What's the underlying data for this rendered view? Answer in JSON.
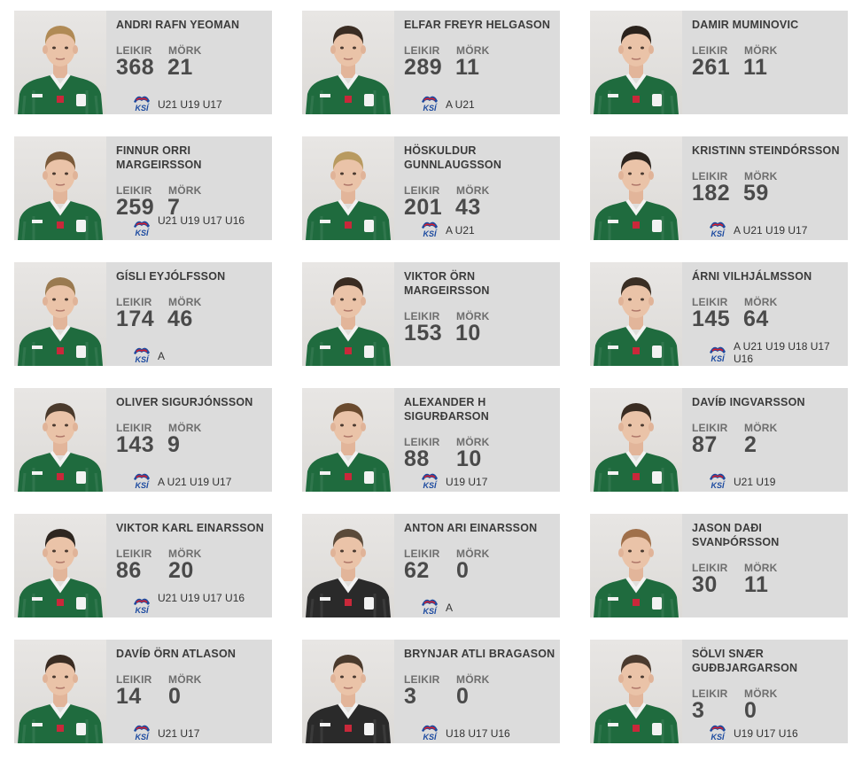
{
  "labels": {
    "games": "Leikir",
    "goals": "Mörk"
  },
  "colors": {
    "card_bg": "#dcdcdc",
    "jersey": "#1f6b3e",
    "keeper_jersey": "#2a2a2a",
    "ksi_blue": "#1c4aa0",
    "ksi_red": "#d22030"
  },
  "players": [
    {
      "name": "Andri Rafn Yeoman",
      "games": "368",
      "goals": "21",
      "teams": "U21 U19 U17",
      "hair": "#b08a55",
      "jersey": "field"
    },
    {
      "name": "Elfar Freyr Helgason",
      "games": "289",
      "goals": "11",
      "teams": "A U21",
      "hair": "#3a2c22",
      "jersey": "field"
    },
    {
      "name": "Damir Muminovic",
      "games": "261",
      "goals": "11",
      "teams": "",
      "hair": "#2a221c",
      "jersey": "field"
    },
    {
      "name": "Finnur Orri Margeirsson",
      "games": "259",
      "goals": "7",
      "teams": "U21 U19 U17 U16",
      "hair": "#7a5a3a",
      "jersey": "field"
    },
    {
      "name": "Höskuldur Gunnlaugsson",
      "games": "201",
      "goals": "43",
      "teams": "A U21",
      "hair": "#b89a60",
      "jersey": "field"
    },
    {
      "name": "Kristinn Steindórsson",
      "games": "182",
      "goals": "59",
      "teams": "A U21 U19 U17",
      "hair": "#2c241e",
      "jersey": "field"
    },
    {
      "name": "Gísli Eyjólfsson",
      "games": "174",
      "goals": "46",
      "teams": "A",
      "hair": "#9a7a50",
      "jersey": "field"
    },
    {
      "name": "Viktor Örn Margeirsson",
      "games": "153",
      "goals": "10",
      "teams": "",
      "hair": "#3a2c22",
      "jersey": "field"
    },
    {
      "name": "Árni Vilhjálmsson",
      "games": "145",
      "goals": "64",
      "teams": "A U21 U19 U18 U17 U16",
      "hair": "#3a2e24",
      "jersey": "field"
    },
    {
      "name": "Oliver Sigurjónsson",
      "games": "143",
      "goals": "9",
      "teams": "A U21 U19 U17",
      "hair": "#4a3a2c",
      "jersey": "field"
    },
    {
      "name": "Alexander H Sigurðarson",
      "games": "88",
      "goals": "10",
      "teams": "U19 U17",
      "hair": "#6a4a2e",
      "jersey": "field"
    },
    {
      "name": "Davíð Ingvarsson",
      "games": "87",
      "goals": "2",
      "teams": "U21 U19",
      "hair": "#3a2c22",
      "jersey": "field"
    },
    {
      "name": "Viktor Karl Einarsson",
      "games": "86",
      "goals": "20",
      "teams": "U21 U19 U17 U16",
      "hair": "#2e2620",
      "jersey": "field"
    },
    {
      "name": "Anton Ari Einarsson",
      "games": "62",
      "goals": "0",
      "teams": "A",
      "hair": "#5a4a3a",
      "jersey": "keeper"
    },
    {
      "name": "Jason Daði Svanþórsson",
      "games": "30",
      "goals": "11",
      "teams": "",
      "hair": "#a0704a",
      "jersey": "field"
    },
    {
      "name": "Davíð Örn Atlason",
      "games": "14",
      "goals": "0",
      "teams": "U21 U17",
      "hair": "#3a2c22",
      "jersey": "field"
    },
    {
      "name": "Brynjar Atli Bragason",
      "games": "3",
      "goals": "0",
      "teams": "U18 U17 U16",
      "hair": "#4a3a2c",
      "jersey": "keeper"
    },
    {
      "name": "Sölvi Snær Guðbjargarson",
      "games": "3",
      "goals": "0",
      "teams": "U19 U17 U16",
      "hair": "#4a3a2e",
      "jersey": "field"
    }
  ]
}
